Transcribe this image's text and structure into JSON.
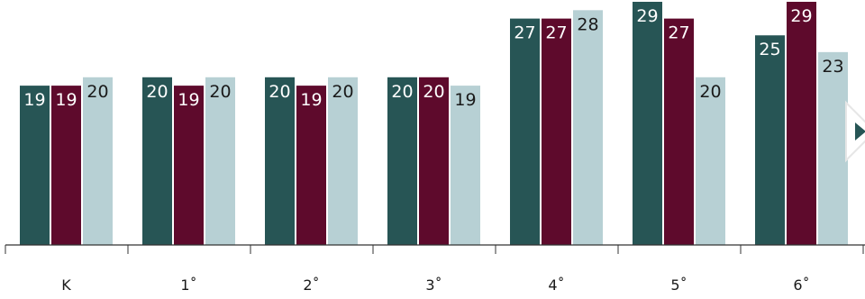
{
  "chart_data": {
    "type": "bar",
    "categories": [
      "K",
      "1˚",
      "2˚",
      "3˚",
      "4˚",
      "5˚",
      "6˚"
    ],
    "series": [
      {
        "values": [
          19,
          20,
          20,
          20,
          27,
          29,
          25
        ],
        "color": "#275555"
      },
      {
        "values": [
          19,
          19,
          19,
          20,
          27,
          27,
          29
        ],
        "color": "#5e0a2c"
      },
      {
        "values": [
          20,
          20,
          20,
          19,
          28,
          20,
          23
        ],
        "color": "#b7d0d4"
      }
    ],
    "title": "",
    "xlabel": "",
    "ylabel": "",
    "ylim": [
      0,
      29
    ],
    "grid": false,
    "legend": "none"
  },
  "controls": {
    "next_icon": "chevron-right-icon"
  }
}
